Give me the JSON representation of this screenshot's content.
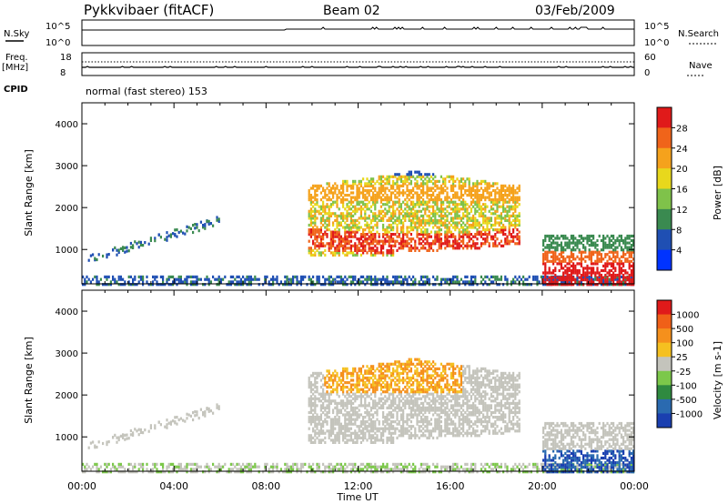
{
  "header": {
    "station": "Pykkvibaer (fitACF)",
    "beam": "Beam 02",
    "date": "03/Feb/2009"
  },
  "noise_panel": {
    "left_label": "N.Sky",
    "left_ticks": [
      "10^5",
      "10^0"
    ],
    "right_label": "N.Search",
    "right_ticks": [
      "10^5",
      "10^0"
    ]
  },
  "freq_panel": {
    "left_label_1": "Freq.",
    "left_label_2": "[MHz]",
    "left_ticks": [
      "18",
      "8"
    ],
    "right_label": "Nave",
    "right_ticks": [
      "60",
      "0"
    ]
  },
  "cpid": {
    "label": "CPID",
    "value": "normal (fast stereo) 153"
  },
  "chart_data": [
    {
      "type": "heatmap",
      "title": "Power",
      "ylabel": "Slant Range [km]",
      "xlabel": "Time UT",
      "xlim": [
        "00:00",
        "24:00"
      ],
      "ylim": [
        180,
        4500
      ],
      "y_ticks": [
        "1000",
        "2000",
        "3000",
        "4000"
      ],
      "x_ticks": [
        "00:00",
        "04:00",
        "08:00",
        "12:00",
        "16:00",
        "20:00",
        "00:00"
      ],
      "colorbar": {
        "label": "Power [dB]",
        "ticks": [
          "4",
          "8",
          "12",
          "16",
          "20",
          "24",
          "28"
        ],
        "colors": [
          "#0033ff",
          "#1f4fb3",
          "#3a8a50",
          "#7fc24a",
          "#e8d81c",
          "#f5a21c",
          "#f0641a",
          "#e01a1a"
        ]
      }
    },
    {
      "type": "heatmap",
      "title": "Velocity",
      "ylabel": "Slant Range [km]",
      "xlabel": "Time UT",
      "xlim": [
        "00:00",
        "24:00"
      ],
      "ylim": [
        180,
        4500
      ],
      "y_ticks": [
        "1000",
        "2000",
        "3000",
        "4000"
      ],
      "x_ticks": [
        "00:00",
        "04:00",
        "08:00",
        "12:00",
        "16:00",
        "20:00",
        "00:00"
      ],
      "colorbar": {
        "label": "Velocity [m s-1]",
        "ticks": [
          "1000",
          "500",
          "100",
          "25",
          "-25",
          "-100",
          "-500",
          "-1000"
        ],
        "colors": [
          "#1a3fb0",
          "#2a6ab0",
          "#2f8a40",
          "#7cc84a",
          "#c4c4bc",
          "#f5c020",
          "#f5901c",
          "#f06018",
          "#e01a1a"
        ]
      }
    }
  ]
}
